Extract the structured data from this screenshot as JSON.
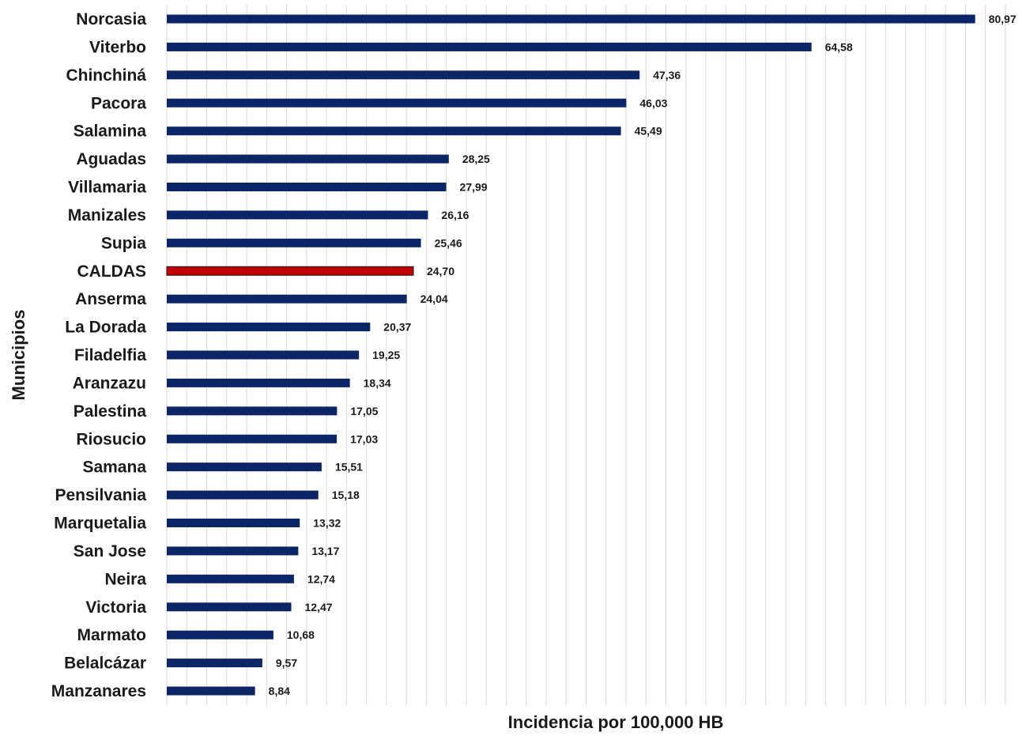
{
  "chart_data": {
    "type": "bar",
    "orientation": "horizontal",
    "title": "",
    "xlabel": "Incidencia por 100,000 HB",
    "ylabel": "Municipios",
    "xlim": [
      0,
      84
    ],
    "grid": true,
    "legend": "none",
    "colors": {
      "default": "#0b2566",
      "highlight": "#c00000"
    },
    "categories": [
      "Norcasia",
      "Viterbo",
      "Chinchiná",
      "Pacora",
      "Salamina",
      "Aguadas",
      "Villamaria",
      "Manizales",
      "Supia",
      "CALDAS",
      "Anserma",
      "La Dorada",
      "Filadelfia",
      "Aranzazu",
      "Palestina",
      "Riosucio",
      "Samana",
      "Pensilvania",
      "Marquetalia",
      "San Jose",
      "Neira",
      "Victoria",
      "Marmato",
      "Belalcázar",
      "Manzanares"
    ],
    "values": [
      80.97,
      64.58,
      47.36,
      46.03,
      45.49,
      28.25,
      27.99,
      26.16,
      25.46,
      24.7,
      24.04,
      20.37,
      19.25,
      18.34,
      17.05,
      17.03,
      15.51,
      15.18,
      13.32,
      13.17,
      12.74,
      12.47,
      10.68,
      9.57,
      8.84
    ],
    "value_labels": [
      "80,97",
      "64,58",
      "47,36",
      "46,03",
      "45,49",
      "28,25",
      "27,99",
      "26,16",
      "25,46",
      "24,70",
      "24,04",
      "20,37",
      "19,25",
      "18,34",
      "17,05",
      "17,03",
      "15,51",
      "15,18",
      "13,32",
      "13,17",
      "12,74",
      "12,47",
      "10,68",
      "9,57",
      "8,84"
    ],
    "highlight": [
      "CALDAS"
    ]
  }
}
